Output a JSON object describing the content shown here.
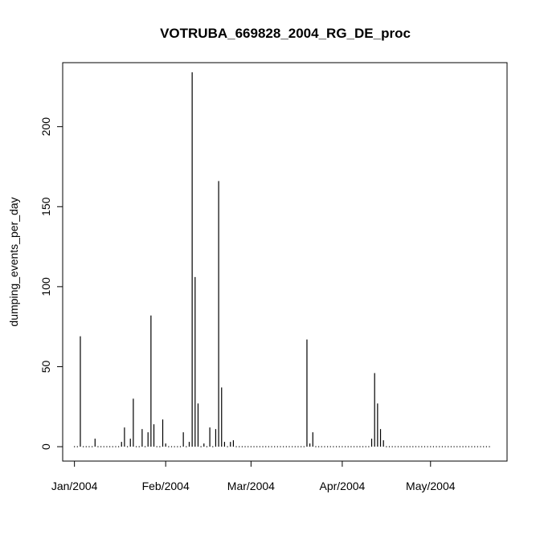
{
  "chart_data": {
    "type": "bar",
    "title": "VOTRUBA_669828_2004_RG_DE_proc",
    "xlabel": "",
    "ylabel": "dumping_events_per_day",
    "x_range": [
      "2003-12-28",
      "2004-05-27"
    ],
    "ylim": [
      -9,
      240
    ],
    "y_ticks": [
      0,
      50,
      100,
      150,
      200
    ],
    "x_ticks": [
      {
        "date": "2004-01-01",
        "label": "Jan/2004"
      },
      {
        "date": "2004-02-01",
        "label": "Feb/2004"
      },
      {
        "date": "2004-03-01",
        "label": "Mar/2004"
      },
      {
        "date": "2004-04-01",
        "label": "Apr/2004"
      },
      {
        "date": "2004-05-01",
        "label": "May/2004"
      }
    ],
    "grid": false,
    "legend": "none",
    "bar_color": "#000000",
    "points": [
      {
        "date": "2004-01-03",
        "value": 69
      },
      {
        "date": "2004-01-08",
        "value": 5
      },
      {
        "date": "2004-01-17",
        "value": 3
      },
      {
        "date": "2004-01-18",
        "value": 12
      },
      {
        "date": "2004-01-20",
        "value": 5
      },
      {
        "date": "2004-01-21",
        "value": 30
      },
      {
        "date": "2004-01-24",
        "value": 11
      },
      {
        "date": "2004-01-26",
        "value": 9
      },
      {
        "date": "2004-01-27",
        "value": 82
      },
      {
        "date": "2004-01-28",
        "value": 14
      },
      {
        "date": "2004-01-31",
        "value": 17
      },
      {
        "date": "2004-02-01",
        "value": 2
      },
      {
        "date": "2004-02-07",
        "value": 9
      },
      {
        "date": "2004-02-09",
        "value": 3
      },
      {
        "date": "2004-02-10",
        "value": 234
      },
      {
        "date": "2004-02-11",
        "value": 106
      },
      {
        "date": "2004-02-12",
        "value": 27
      },
      {
        "date": "2004-02-14",
        "value": 2
      },
      {
        "date": "2004-02-16",
        "value": 12
      },
      {
        "date": "2004-02-18",
        "value": 11
      },
      {
        "date": "2004-02-19",
        "value": 166
      },
      {
        "date": "2004-02-20",
        "value": 37
      },
      {
        "date": "2004-02-21",
        "value": 3
      },
      {
        "date": "2004-02-23",
        "value": 3
      },
      {
        "date": "2004-02-24",
        "value": 4
      },
      {
        "date": "2004-03-20",
        "value": 67
      },
      {
        "date": "2004-03-21",
        "value": 2
      },
      {
        "date": "2004-03-22",
        "value": 9
      },
      {
        "date": "2004-04-11",
        "value": 5
      },
      {
        "date": "2004-04-12",
        "value": 46
      },
      {
        "date": "2004-04-13",
        "value": 27
      },
      {
        "date": "2004-04-14",
        "value": 11
      },
      {
        "date": "2004-04-15",
        "value": 4
      }
    ],
    "zero_span": [
      "2004-01-01",
      "2004-05-21"
    ]
  }
}
